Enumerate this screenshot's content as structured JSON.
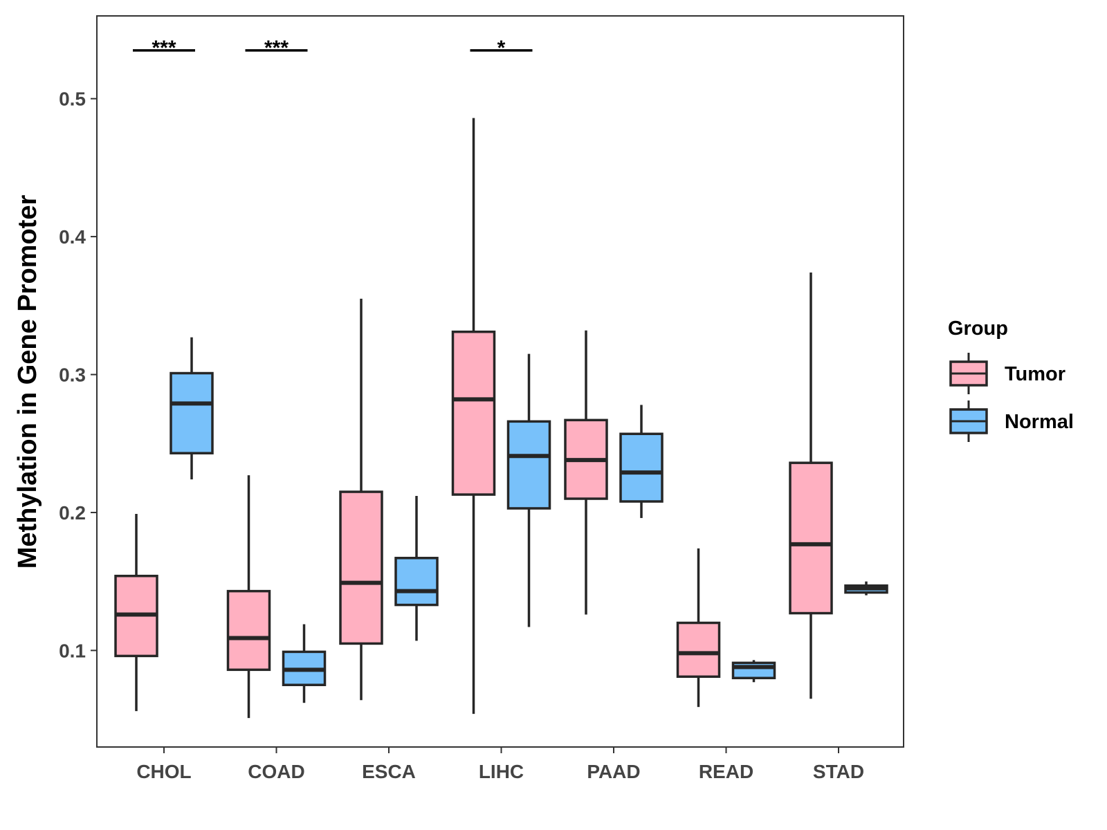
{
  "chart_data": {
    "type": "boxplot",
    "title": "",
    "xlabel": "",
    "ylabel": "Methylation in Gene Promoter",
    "ylim": [
      0.03,
      0.56
    ],
    "yticks": [
      0.1,
      0.2,
      0.3,
      0.4,
      0.5
    ],
    "ytick_labels": [
      "0.1",
      "0.2",
      "0.3",
      "0.4",
      "0.5"
    ],
    "categories": [
      "CHOL",
      "COAD",
      "ESCA",
      "LIHC",
      "PAAD",
      "READ",
      "STAD"
    ],
    "legend": {
      "title": "Group",
      "position": "right",
      "entries": [
        "Tumor",
        "Normal"
      ]
    },
    "colors": {
      "Tumor": "#FFB0C1",
      "Normal": "#78C1FA",
      "line": "#262626"
    },
    "series": [
      {
        "name": "Tumor",
        "boxes": [
          {
            "category": "CHOL",
            "min": 0.056,
            "q1": 0.096,
            "median": 0.126,
            "q3": 0.154,
            "max": 0.199
          },
          {
            "category": "COAD",
            "min": 0.051,
            "q1": 0.086,
            "median": 0.109,
            "q3": 0.143,
            "max": 0.227
          },
          {
            "category": "ESCA",
            "min": 0.064,
            "q1": 0.105,
            "median": 0.149,
            "q3": 0.215,
            "max": 0.355
          },
          {
            "category": "LIHC",
            "min": 0.054,
            "q1": 0.213,
            "median": 0.282,
            "q3": 0.331,
            "max": 0.486
          },
          {
            "category": "PAAD",
            "min": 0.126,
            "q1": 0.21,
            "median": 0.238,
            "q3": 0.267,
            "max": 0.332
          },
          {
            "category": "READ",
            "min": 0.059,
            "q1": 0.081,
            "median": 0.098,
            "q3": 0.12,
            "max": 0.174
          },
          {
            "category": "STAD",
            "min": 0.065,
            "q1": 0.127,
            "median": 0.177,
            "q3": 0.236,
            "max": 0.374
          }
        ]
      },
      {
        "name": "Normal",
        "boxes": [
          {
            "category": "CHOL",
            "min": 0.224,
            "q1": 0.243,
            "median": 0.279,
            "q3": 0.301,
            "max": 0.327
          },
          {
            "category": "COAD",
            "min": 0.062,
            "q1": 0.075,
            "median": 0.086,
            "q3": 0.099,
            "max": 0.119
          },
          {
            "category": "ESCA",
            "min": 0.107,
            "q1": 0.133,
            "median": 0.143,
            "q3": 0.167,
            "max": 0.212
          },
          {
            "category": "LIHC",
            "min": 0.117,
            "q1": 0.203,
            "median": 0.241,
            "q3": 0.266,
            "max": 0.315
          },
          {
            "category": "PAAD",
            "min": 0.196,
            "q1": 0.208,
            "median": 0.229,
            "q3": 0.257,
            "max": 0.278
          },
          {
            "category": "READ",
            "min": 0.077,
            "q1": 0.08,
            "median": 0.088,
            "q3": 0.091,
            "max": 0.093
          },
          {
            "category": "STAD",
            "min": 0.14,
            "q1": 0.142,
            "median": 0.145,
            "q3": 0.147,
            "max": 0.15
          }
        ]
      }
    ],
    "annotations": [
      {
        "category": "CHOL",
        "label": "***",
        "y": 0.535
      },
      {
        "category": "COAD",
        "label": "***",
        "y": 0.535
      },
      {
        "category": "LIHC",
        "label": "*",
        "y": 0.535
      }
    ]
  }
}
